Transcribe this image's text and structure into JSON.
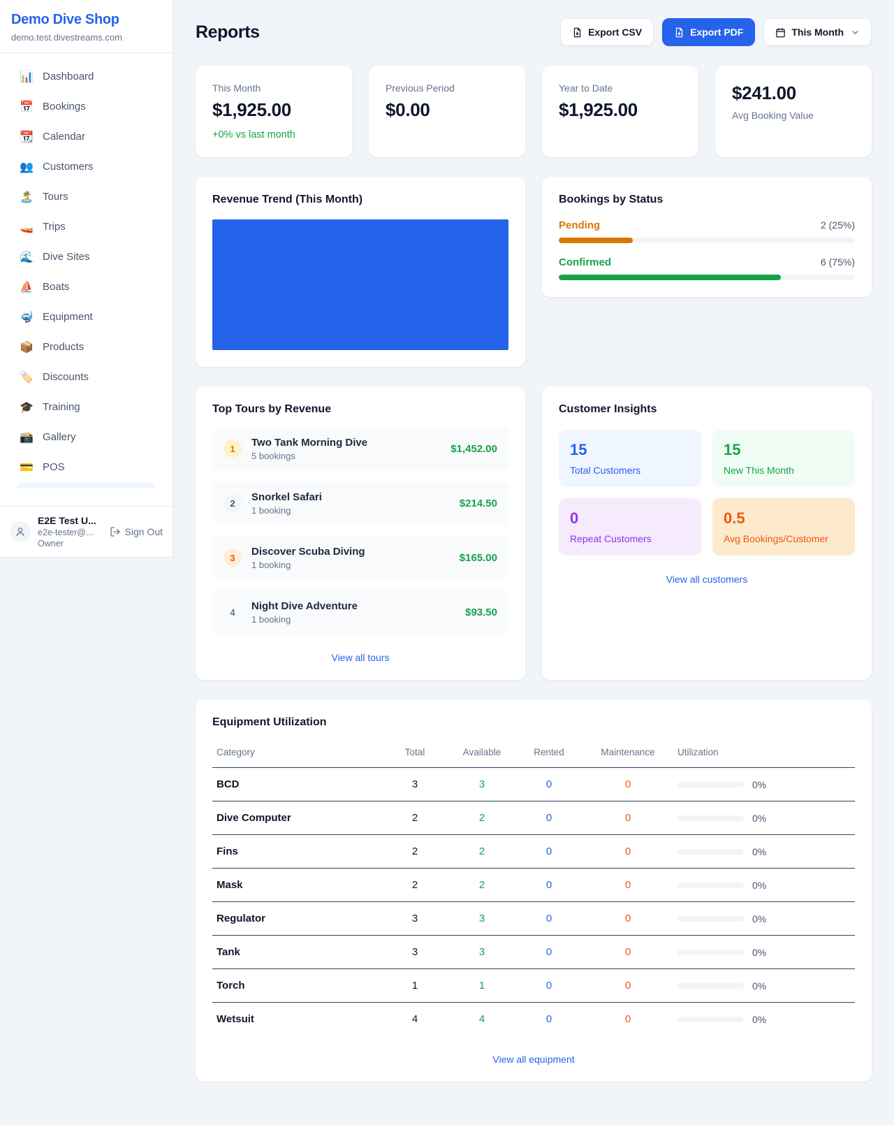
{
  "sidebar": {
    "brand": "Demo Dive Shop",
    "subdomain": "demo.test.divestreams.com",
    "items": [
      {
        "icon": "📊",
        "label": "Dashboard"
      },
      {
        "icon": "📅",
        "label": "Bookings"
      },
      {
        "icon": "📆",
        "label": "Calendar"
      },
      {
        "icon": "👥",
        "label": "Customers"
      },
      {
        "icon": "🏝️",
        "label": "Tours"
      },
      {
        "icon": "🚤",
        "label": "Trips"
      },
      {
        "icon": "🌊",
        "label": "Dive Sites"
      },
      {
        "icon": "⛵",
        "label": "Boats"
      },
      {
        "icon": "🤿",
        "label": "Equipment"
      },
      {
        "icon": "📦",
        "label": "Products"
      },
      {
        "icon": "🏷️",
        "label": "Discounts"
      },
      {
        "icon": "🎓",
        "label": "Training"
      },
      {
        "icon": "📸",
        "label": "Gallery"
      },
      {
        "icon": "💳",
        "label": "POS"
      }
    ],
    "user": {
      "name": "E2E Test U...",
      "email": "e2e-tester@...",
      "role": "Owner",
      "signout_label": "Sign Out"
    }
  },
  "header": {
    "title": "Reports",
    "export_csv_label": "Export CSV",
    "export_pdf_label": "Export PDF",
    "period_label": "This Month"
  },
  "stats": [
    {
      "label": "This Month",
      "value": "$1,925.00",
      "delta": "+0% vs last month"
    },
    {
      "label": "Previous Period",
      "value": "$0.00"
    },
    {
      "label": "Year to Date",
      "value": "$1,925.00"
    },
    {
      "label": "Avg Booking Value",
      "value": "$241.00"
    }
  ],
  "revenue_trend": {
    "title": "Revenue Trend (This Month)"
  },
  "chart_data": {
    "type": "bar",
    "title": "Revenue Trend (This Month)",
    "categories": [
      "This Month"
    ],
    "values": [
      1925.0
    ],
    "note": "single solid blue bar filling the entire plot area, no axes or labels visible",
    "bar_color": "#2563eb"
  },
  "bookings_status": {
    "title": "Bookings by Status",
    "rows": [
      {
        "label": "Pending",
        "value": "2 (25%)",
        "pct": 25,
        "color": "#d97706"
      },
      {
        "label": "Confirmed",
        "value": "6 (75%)",
        "pct": 75,
        "color": "#16a34a"
      }
    ]
  },
  "top_tours": {
    "title": "Top Tours by Revenue",
    "rows": [
      {
        "rank": "1",
        "name": "Two Tank Morning Dive",
        "bookings": "5 bookings",
        "revenue": "$1,452.00"
      },
      {
        "rank": "2",
        "name": "Snorkel Safari",
        "bookings": "1 booking",
        "revenue": "$214.50"
      },
      {
        "rank": "3",
        "name": "Discover Scuba Diving",
        "bookings": "1 booking",
        "revenue": "$165.00"
      },
      {
        "rank": "4",
        "name": "Night Dive Adventure",
        "bookings": "1 booking",
        "revenue": "$93.50"
      }
    ],
    "link": "View all tours"
  },
  "customer_insights": {
    "title": "Customer Insights",
    "tiles": [
      {
        "value": "15",
        "label": "Total Customers"
      },
      {
        "value": "15",
        "label": "New This Month"
      },
      {
        "value": "0",
        "label": "Repeat Customers"
      },
      {
        "value": "0.5",
        "label": "Avg Bookings/Customer"
      }
    ],
    "link": "View all customers"
  },
  "equipment": {
    "title": "Equipment Utilization",
    "headers": {
      "category": "Category",
      "total": "Total",
      "available": "Available",
      "rented": "Rented",
      "maintenance": "Maintenance",
      "utilization": "Utilization"
    },
    "rows": [
      {
        "category": "BCD",
        "total": "3",
        "available": "3",
        "rented": "0",
        "maintenance": "0",
        "utilization": "0%"
      },
      {
        "category": "Dive Computer",
        "total": "2",
        "available": "2",
        "rented": "0",
        "maintenance": "0",
        "utilization": "0%"
      },
      {
        "category": "Fins",
        "total": "2",
        "available": "2",
        "rented": "0",
        "maintenance": "0",
        "utilization": "0%"
      },
      {
        "category": "Mask",
        "total": "2",
        "available": "2",
        "rented": "0",
        "maintenance": "0",
        "utilization": "0%"
      },
      {
        "category": "Regulator",
        "total": "3",
        "available": "3",
        "rented": "0",
        "maintenance": "0",
        "utilization": "0%"
      },
      {
        "category": "Tank",
        "total": "3",
        "available": "3",
        "rented": "0",
        "maintenance": "0",
        "utilization": "0%"
      },
      {
        "category": "Torch",
        "total": "1",
        "available": "1",
        "rented": "0",
        "maintenance": "0",
        "utilization": "0%"
      },
      {
        "category": "Wetsuit",
        "total": "4",
        "available": "4",
        "rented": "0",
        "maintenance": "0",
        "utilization": "0%"
      }
    ],
    "link": "View all equipment"
  },
  "colors": {
    "accent_blue": "#2563eb",
    "green": "#16a34a",
    "pending_orange": "#d97706",
    "bronze_orange": "#ea580c",
    "purple": "#9333ea",
    "muted_text": "#64748b",
    "dark_text": "#0f172a",
    "page_bg": "#f1f5f9",
    "track_gray": "#f1f5f9"
  }
}
